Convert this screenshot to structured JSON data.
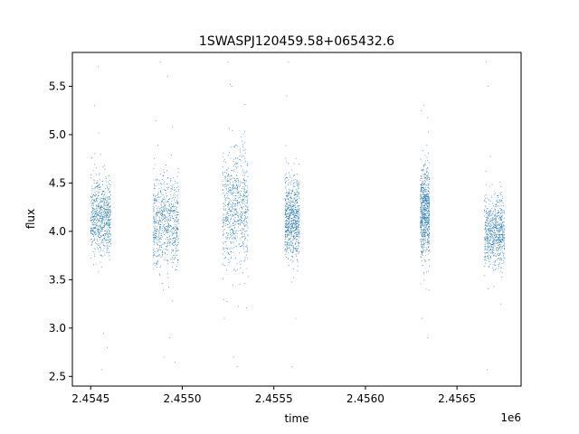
{
  "chart_data": {
    "type": "scatter",
    "title": "1SWASPJ120459.58+065432.6",
    "xlabel": "time",
    "ylabel": "flux",
    "x_offset_label": "1e6",
    "xlim": [
      2454400,
      2456850
    ],
    "ylim": [
      2.4,
      5.85
    ],
    "x_ticks": [
      2454500,
      2455000,
      2455500,
      2456000,
      2456500
    ],
    "x_tick_labels": [
      "2.4545",
      "2.4550",
      "2.4555",
      "2.4560",
      "2.4565"
    ],
    "y_ticks": [
      2.5,
      3.0,
      3.5,
      4.0,
      4.5,
      5.0,
      5.5
    ],
    "y_tick_labels": [
      "2.5",
      "3.0",
      "3.5",
      "4.0",
      "4.5",
      "5.0",
      "5.5"
    ],
    "grid": false,
    "marker_color": "#1f77b4",
    "series": [
      {
        "clusters": [
          {
            "x_range": [
              2454500,
              2454610
            ],
            "y_center": 4.15,
            "y_spread": [
              3.6,
              4.7
            ],
            "outliers": [
              [
                2454540,
                5.7
              ],
              [
                2454520,
                5.3
              ],
              [
                2454590,
                2.8
              ],
              [
                2454570,
                2.95
              ],
              [
                2454560,
                2.57
              ]
            ]
          },
          {
            "x_range": [
              2454840,
              2454980
            ],
            "y_center": 4.1,
            "y_spread": [
              3.4,
              4.8
            ],
            "outliers": [
              [
                2454880,
                5.75
              ],
              [
                2454920,
                5.6
              ],
              [
                2454900,
                2.7
              ],
              [
                2454960,
                2.65
              ],
              [
                2454930,
                2.9
              ]
            ]
          },
          {
            "x_range": [
              2455220,
              2455360
            ],
            "y_center": 4.25,
            "y_spread": [
              3.3,
              5.1
            ],
            "outliers": [
              [
                2455250,
                5.75
              ],
              [
                2455270,
                5.5
              ],
              [
                2455300,
                2.6
              ],
              [
                2455280,
                2.7
              ],
              [
                2455230,
                3.1
              ]
            ]
          },
          {
            "x_range": [
              2455560,
              2455640
            ],
            "y_center": 4.15,
            "y_spread": [
              3.5,
              4.8
            ],
            "outliers": [
              [
                2455580,
                5.75
              ],
              [
                2455570,
                5.4
              ],
              [
                2455600,
                2.6
              ],
              [
                2455620,
                3.1
              ]
            ]
          },
          {
            "x_range": [
              2456300,
              2456350
            ],
            "y_center": 4.2,
            "y_spread": [
              3.5,
              4.9
            ],
            "outliers": [
              [
                2456320,
                5.3
              ],
              [
                2456310,
                3.1
              ],
              [
                2456340,
                2.9
              ]
            ]
          },
          {
            "x_range": [
              2456650,
              2456760
            ],
            "y_center": 4.0,
            "y_spread": [
              3.5,
              4.6
            ],
            "outliers": [
              [
                2456660,
                5.75
              ],
              [
                2456670,
                5.5
              ],
              [
                2456665,
                2.57
              ],
              [
                2456740,
                3.25
              ]
            ]
          }
        ]
      }
    ]
  }
}
